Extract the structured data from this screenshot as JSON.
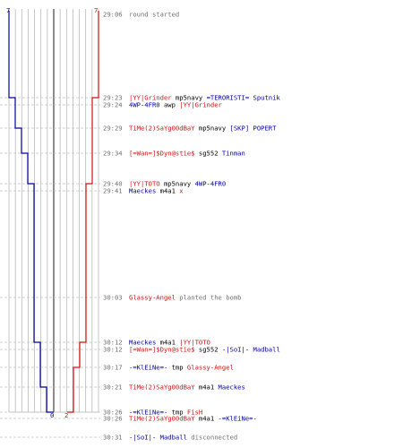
{
  "colors": {
    "ct": "#0000a0",
    "t": "#d01010",
    "neutral": "#707070",
    "grid": "#b0b0b0",
    "guide": "#c0c0c0",
    "center": "#404040",
    "time": "#707070"
  },
  "counts": {
    "ct_start": "7",
    "t_start": "7",
    "ct_end": "0",
    "t_end": "2"
  },
  "events": [
    {
      "time": "29:06",
      "parts": [
        {
          "text": "round started",
          "team": "neutral"
        }
      ]
    },
    {
      "time": "29:23",
      "parts": [
        {
          "text": "|YY|Grinder",
          "team": "t"
        },
        {
          "text": " mp5navy ",
          "team": "weapon"
        },
        {
          "text": "=TERORISTI= Sputnik",
          "team": "ct"
        }
      ]
    },
    {
      "time": "29:24",
      "parts": [
        {
          "text": "4WP-4FR0",
          "team": "ct"
        },
        {
          "text": " awp ",
          "team": "weapon"
        },
        {
          "text": "|YY|Grinder",
          "team": "t"
        }
      ]
    },
    {
      "time": "29:29",
      "parts": [
        {
          "text": "TiMe(2)SaYg00dBaY",
          "team": "t"
        },
        {
          "text": " mp5navy ",
          "team": "weapon"
        },
        {
          "text": "[SKP] POPERT",
          "team": "ct"
        }
      ]
    },
    {
      "time": "29:34",
      "parts": [
        {
          "text": "[=Wan=]$Dyn@stie$",
          "team": "t"
        },
        {
          "text": " sg552 ",
          "team": "weapon"
        },
        {
          "text": "Tinman",
          "team": "ct"
        }
      ]
    },
    {
      "time": "29:40",
      "parts": [
        {
          "text": "|YY|TOTO",
          "team": "t"
        },
        {
          "text": " mp5navy ",
          "team": "weapon"
        },
        {
          "text": "4WP-4FR0",
          "team": "ct"
        }
      ]
    },
    {
      "time": "29:41",
      "parts": [
        {
          "text": "Maeckes",
          "team": "ct"
        },
        {
          "text": " m4a1 ",
          "team": "weapon"
        },
        {
          "text": "x",
          "team": "t"
        }
      ]
    },
    {
      "time": "30:03",
      "parts": [
        {
          "text": "Glassy-Angel",
          "team": "t"
        },
        {
          "text": " planted the bomb",
          "team": "neutral"
        }
      ]
    },
    {
      "time": "30:12",
      "parts": [
        {
          "text": "Maeckes",
          "team": "ct"
        },
        {
          "text": " m4a1 ",
          "team": "weapon"
        },
        {
          "text": "|YY|TOTO",
          "team": "t"
        }
      ]
    },
    {
      "time": "30:12",
      "parts": [
        {
          "text": "[=Wan=]$Dyn@stie$",
          "team": "t"
        },
        {
          "text": " sg552 ",
          "team": "weapon"
        },
        {
          "text": "-|SoI|- Madball",
          "team": "ct"
        }
      ]
    },
    {
      "time": "30:17",
      "parts": [
        {
          "text": "-=KlEiNe=-",
          "team": "ct"
        },
        {
          "text": " tmp ",
          "team": "weapon"
        },
        {
          "text": "Glassy-Angel",
          "team": "t"
        }
      ]
    },
    {
      "time": "30:21",
      "parts": [
        {
          "text": "TiMe(2)SaYg00dBaY",
          "team": "t"
        },
        {
          "text": " m4a1 ",
          "team": "weapon"
        },
        {
          "text": "Maeckes",
          "team": "ct"
        }
      ]
    },
    {
      "time": "30:26",
      "parts": [
        {
          "text": "-=KlEiNe=-",
          "team": "ct"
        },
        {
          "text": " tmp ",
          "team": "weapon"
        },
        {
          "text": "FisH",
          "team": "t"
        }
      ]
    },
    {
      "time": "30:26",
      "parts": [
        {
          "text": "TiMe(2)SaYg00dBaY",
          "team": "t"
        },
        {
          "text": " m4a1 ",
          "team": "weapon"
        },
        {
          "text": "-=KlEiNe=-",
          "team": "ct"
        }
      ]
    },
    {
      "time": "30:31",
      "parts": [
        {
          "text": "-|SoI|- Madball",
          "team": "ct"
        },
        {
          "text": " disconnected",
          "team": "neutral"
        }
      ]
    }
  ]
}
